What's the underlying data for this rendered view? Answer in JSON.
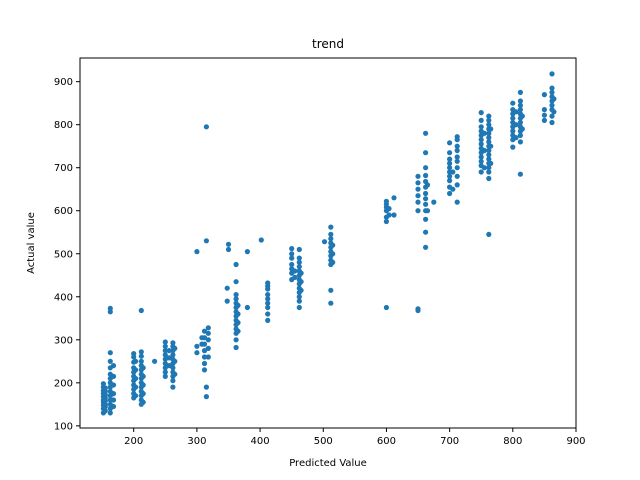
{
  "chart_data": {
    "type": "scatter",
    "title": "trend",
    "xlabel": "Predicted Value",
    "ylabel": "Actual value",
    "xlim": [
      115,
      900
    ],
    "ylim": [
      95,
      955
    ],
    "xticks": [
      200,
      300,
      400,
      500,
      600,
      700,
      800,
      900
    ],
    "yticks": [
      100,
      200,
      300,
      400,
      500,
      600,
      700,
      800,
      900
    ],
    "grid": false,
    "legend": "none",
    "colors": {
      "marker": "#1f77b4"
    },
    "series": [
      {
        "name": "",
        "points": [
          [
            152,
            130
          ],
          [
            152,
            140
          ],
          [
            152,
            148
          ],
          [
            152,
            155
          ],
          [
            152,
            160
          ],
          [
            152,
            168
          ],
          [
            152,
            175
          ],
          [
            152,
            182
          ],
          [
            152,
            190
          ],
          [
            152,
            198
          ],
          [
            155,
            135
          ],
          [
            155,
            145
          ],
          [
            155,
            150
          ],
          [
            155,
            158
          ],
          [
            155,
            165
          ],
          [
            155,
            172
          ],
          [
            155,
            180
          ],
          [
            155,
            188
          ],
          [
            163,
            130
          ],
          [
            163,
            140
          ],
          [
            163,
            150
          ],
          [
            163,
            160
          ],
          [
            163,
            170
          ],
          [
            163,
            180
          ],
          [
            163,
            190
          ],
          [
            163,
            200
          ],
          [
            163,
            210
          ],
          [
            163,
            220
          ],
          [
            163,
            235
          ],
          [
            163,
            250
          ],
          [
            163,
            270
          ],
          [
            163,
            365
          ],
          [
            163,
            373
          ],
          [
            168,
            145
          ],
          [
            168,
            160
          ],
          [
            168,
            175
          ],
          [
            168,
            195
          ],
          [
            168,
            215
          ],
          [
            168,
            240
          ],
          [
            200,
            175
          ],
          [
            200,
            185
          ],
          [
            200,
            195
          ],
          [
            200,
            205
          ],
          [
            200,
            215
          ],
          [
            200,
            225
          ],
          [
            200,
            235
          ],
          [
            200,
            248
          ],
          [
            200,
            260
          ],
          [
            200,
            268
          ],
          [
            200,
            165
          ],
          [
            203,
            170
          ],
          [
            203,
            190
          ],
          [
            203,
            210
          ],
          [
            203,
            230
          ],
          [
            203,
            250
          ],
          [
            212,
            150
          ],
          [
            212,
            160
          ],
          [
            212,
            170
          ],
          [
            212,
            180
          ],
          [
            212,
            190
          ],
          [
            212,
            200
          ],
          [
            212,
            210
          ],
          [
            212,
            220
          ],
          [
            212,
            230
          ],
          [
            212,
            240
          ],
          [
            212,
            250
          ],
          [
            212,
            262
          ],
          [
            212,
            272
          ],
          [
            212,
            368
          ],
          [
            215,
            155
          ],
          [
            215,
            175
          ],
          [
            215,
            195
          ],
          [
            215,
            215
          ],
          [
            215,
            235
          ],
          [
            233,
            250
          ],
          [
            250,
            215
          ],
          [
            250,
            225
          ],
          [
            250,
            235
          ],
          [
            250,
            245
          ],
          [
            250,
            255
          ],
          [
            250,
            265
          ],
          [
            250,
            275
          ],
          [
            250,
            285
          ],
          [
            250,
            295
          ],
          [
            256,
            240
          ],
          [
            256,
            258
          ],
          [
            256,
            275
          ],
          [
            262,
            190
          ],
          [
            262,
            205
          ],
          [
            262,
            215
          ],
          [
            262,
            225
          ],
          [
            262,
            235
          ],
          [
            262,
            245
          ],
          [
            262,
            255
          ],
          [
            262,
            265
          ],
          [
            262,
            275
          ],
          [
            262,
            285
          ],
          [
            262,
            293
          ],
          [
            265,
            220
          ],
          [
            265,
            250
          ],
          [
            265,
            280
          ],
          [
            300,
            270
          ],
          [
            300,
            285
          ],
          [
            300,
            505
          ],
          [
            308,
            290
          ],
          [
            308,
            305
          ],
          [
            312,
            230
          ],
          [
            312,
            245
          ],
          [
            312,
            260
          ],
          [
            312,
            275
          ],
          [
            312,
            290
          ],
          [
            312,
            305
          ],
          [
            312,
            320
          ],
          [
            315,
            168
          ],
          [
            315,
            190
          ],
          [
            315,
            795
          ],
          [
            315,
            530
          ],
          [
            318,
            260
          ],
          [
            318,
            280
          ],
          [
            318,
            300
          ],
          [
            318,
            315
          ],
          [
            318,
            328
          ],
          [
            348,
            390
          ],
          [
            348,
            420
          ],
          [
            350,
            510
          ],
          [
            350,
            522
          ],
          [
            362,
            282
          ],
          [
            362,
            300
          ],
          [
            362,
            315
          ],
          [
            362,
            325
          ],
          [
            362,
            335
          ],
          [
            362,
            345
          ],
          [
            362,
            355
          ],
          [
            362,
            365
          ],
          [
            362,
            375
          ],
          [
            362,
            385
          ],
          [
            362,
            395
          ],
          [
            362,
            405
          ],
          [
            362,
            435
          ],
          [
            362,
            475
          ],
          [
            365,
            320
          ],
          [
            365,
            340
          ],
          [
            365,
            360
          ],
          [
            365,
            380
          ],
          [
            380,
            375
          ],
          [
            380,
            505
          ],
          [
            402,
            532
          ],
          [
            412,
            345
          ],
          [
            412,
            360
          ],
          [
            412,
            375
          ],
          [
            412,
            385
          ],
          [
            412,
            395
          ],
          [
            412,
            405
          ],
          [
            412,
            418
          ],
          [
            412,
            425
          ],
          [
            412,
            432
          ],
          [
            450,
            440
          ],
          [
            450,
            455
          ],
          [
            450,
            465
          ],
          [
            450,
            475
          ],
          [
            450,
            490
          ],
          [
            450,
            500
          ],
          [
            450,
            512
          ],
          [
            455,
            445
          ],
          [
            455,
            460
          ],
          [
            462,
            375
          ],
          [
            462,
            390
          ],
          [
            462,
            400
          ],
          [
            462,
            410
          ],
          [
            462,
            420
          ],
          [
            462,
            430
          ],
          [
            462,
            440
          ],
          [
            462,
            450
          ],
          [
            462,
            460
          ],
          [
            462,
            470
          ],
          [
            462,
            480
          ],
          [
            462,
            490
          ],
          [
            462,
            510
          ],
          [
            465,
            415
          ],
          [
            465,
            435
          ],
          [
            465,
            455
          ],
          [
            502,
            528
          ],
          [
            512,
            385
          ],
          [
            512,
            415
          ],
          [
            512,
            475
          ],
          [
            512,
            485
          ],
          [
            512,
            495
          ],
          [
            512,
            505
          ],
          [
            512,
            515
          ],
          [
            512,
            525
          ],
          [
            512,
            535
          ],
          [
            512,
            545
          ],
          [
            512,
            562
          ],
          [
            515,
            480
          ],
          [
            515,
            500
          ],
          [
            515,
            520
          ],
          [
            600,
            375
          ],
          [
            600,
            575
          ],
          [
            600,
            585
          ],
          [
            600,
            600
          ],
          [
            600,
            608
          ],
          [
            600,
            615
          ],
          [
            600,
            622
          ],
          [
            604,
            590
          ],
          [
            604,
            605
          ],
          [
            612,
            590
          ],
          [
            612,
            630
          ],
          [
            650,
            368
          ],
          [
            650,
            372
          ],
          [
            650,
            600
          ],
          [
            650,
            620
          ],
          [
            650,
            635
          ],
          [
            650,
            650
          ],
          [
            650,
            665
          ],
          [
            650,
            680
          ],
          [
            662,
            515
          ],
          [
            662,
            550
          ],
          [
            662,
            580
          ],
          [
            662,
            600
          ],
          [
            662,
            615
          ],
          [
            662,
            628
          ],
          [
            662,
            640
          ],
          [
            662,
            655
          ],
          [
            662,
            668
          ],
          [
            662,
            682
          ],
          [
            662,
            700
          ],
          [
            662,
            735
          ],
          [
            662,
            780
          ],
          [
            665,
            600
          ],
          [
            665,
            660
          ],
          [
            675,
            620
          ],
          [
            700,
            640
          ],
          [
            700,
            655
          ],
          [
            700,
            670
          ],
          [
            700,
            680
          ],
          [
            700,
            690
          ],
          [
            700,
            700
          ],
          [
            700,
            710
          ],
          [
            700,
            720
          ],
          [
            700,
            735
          ],
          [
            700,
            758
          ],
          [
            705,
            650
          ],
          [
            705,
            690
          ],
          [
            712,
            620
          ],
          [
            712,
            660
          ],
          [
            712,
            680
          ],
          [
            712,
            700
          ],
          [
            712,
            715
          ],
          [
            712,
            725
          ],
          [
            712,
            740
          ],
          [
            712,
            750
          ],
          [
            712,
            765
          ],
          [
            712,
            772
          ],
          [
            750,
            690
          ],
          [
            750,
            705
          ],
          [
            750,
            715
          ],
          [
            750,
            725
          ],
          [
            750,
            735
          ],
          [
            750,
            745
          ],
          [
            750,
            755
          ],
          [
            750,
            765
          ],
          [
            750,
            775
          ],
          [
            750,
            785
          ],
          [
            750,
            795
          ],
          [
            750,
            810
          ],
          [
            750,
            828
          ],
          [
            755,
            700
          ],
          [
            755,
            740
          ],
          [
            755,
            780
          ],
          [
            762,
            545
          ],
          [
            762,
            675
          ],
          [
            762,
            690
          ],
          [
            762,
            700
          ],
          [
            762,
            710
          ],
          [
            762,
            720
          ],
          [
            762,
            730
          ],
          [
            762,
            740
          ],
          [
            762,
            750
          ],
          [
            762,
            760
          ],
          [
            762,
            770
          ],
          [
            762,
            780
          ],
          [
            762,
            790
          ],
          [
            762,
            800
          ],
          [
            762,
            810
          ],
          [
            762,
            820
          ],
          [
            765,
            710
          ],
          [
            765,
            750
          ],
          [
            765,
            790
          ],
          [
            800,
            748
          ],
          [
            800,
            765
          ],
          [
            800,
            775
          ],
          [
            800,
            785
          ],
          [
            800,
            795
          ],
          [
            800,
            805
          ],
          [
            800,
            815
          ],
          [
            800,
            825
          ],
          [
            800,
            835
          ],
          [
            800,
            850
          ],
          [
            805,
            770
          ],
          [
            805,
            800
          ],
          [
            805,
            830
          ],
          [
            812,
            685
          ],
          [
            812,
            760
          ],
          [
            812,
            775
          ],
          [
            812,
            785
          ],
          [
            812,
            795
          ],
          [
            812,
            805
          ],
          [
            812,
            815
          ],
          [
            812,
            825
          ],
          [
            812,
            835
          ],
          [
            812,
            845
          ],
          [
            812,
            855
          ],
          [
            812,
            875
          ],
          [
            815,
            790
          ],
          [
            815,
            820
          ],
          [
            850,
            810
          ],
          [
            850,
            822
          ],
          [
            850,
            835
          ],
          [
            850,
            870
          ],
          [
            862,
            805
          ],
          [
            862,
            820
          ],
          [
            862,
            835
          ],
          [
            862,
            845
          ],
          [
            862,
            855
          ],
          [
            862,
            865
          ],
          [
            862,
            875
          ],
          [
            862,
            885
          ],
          [
            862,
            918
          ],
          [
            865,
            830
          ],
          [
            865,
            860
          ]
        ]
      }
    ]
  }
}
